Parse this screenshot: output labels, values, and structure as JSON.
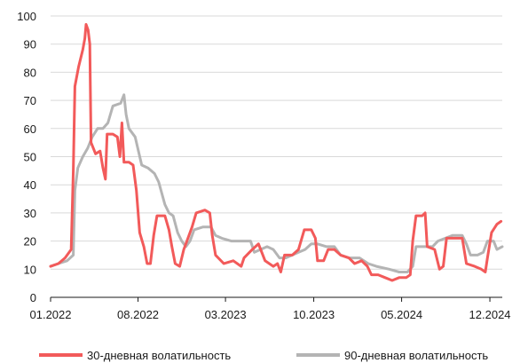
{
  "chart_data": {
    "type": "line",
    "title": "",
    "xlabel": "",
    "ylabel": "",
    "ylim": [
      0,
      100
    ],
    "yticks": [
      0,
      10,
      20,
      30,
      40,
      50,
      60,
      70,
      80,
      90,
      100
    ],
    "xlim": [
      "2022-01-01",
      "2024-12-31"
    ],
    "xticks": [
      {
        "date": "2022-01-01",
        "label": "01.2022"
      },
      {
        "date": "2022-08-01",
        "label": "08.2022"
      },
      {
        "date": "2023-03-01",
        "label": "03.2023"
      },
      {
        "date": "2023-10-01",
        "label": "10.2023"
      },
      {
        "date": "2024-05-01",
        "label": "05.2024"
      },
      {
        "date": "2024-12-01",
        "label": "12.2024"
      }
    ],
    "grid": "horizontal",
    "legend_position": "bottom",
    "series": [
      {
        "name": "30-дневная волатильность",
        "color": "#f25a5a",
        "points": [
          [
            "2022-01-01",
            11
          ],
          [
            "2022-01-20",
            12
          ],
          [
            "2022-02-05",
            14
          ],
          [
            "2022-02-20",
            17
          ],
          [
            "2022-02-25",
            45
          ],
          [
            "2022-03-01",
            75
          ],
          [
            "2022-03-10",
            82
          ],
          [
            "2022-03-20",
            88
          ],
          [
            "2022-03-25",
            92
          ],
          [
            "2022-03-28",
            97
          ],
          [
            "2022-04-02",
            95
          ],
          [
            "2022-04-06",
            90
          ],
          [
            "2022-04-09",
            55
          ],
          [
            "2022-04-20",
            51
          ],
          [
            "2022-05-01",
            52
          ],
          [
            "2022-05-08",
            46
          ],
          [
            "2022-05-14",
            42
          ],
          [
            "2022-05-18",
            58
          ],
          [
            "2022-06-01",
            58
          ],
          [
            "2022-06-12",
            57
          ],
          [
            "2022-06-18",
            50
          ],
          [
            "2022-06-23",
            62
          ],
          [
            "2022-06-28",
            48
          ],
          [
            "2022-07-10",
            48
          ],
          [
            "2022-07-20",
            47
          ],
          [
            "2022-07-28",
            38
          ],
          [
            "2022-08-05",
            23
          ],
          [
            "2022-08-15",
            18
          ],
          [
            "2022-08-23",
            12
          ],
          [
            "2022-08-31",
            12
          ],
          [
            "2022-09-08",
            22
          ],
          [
            "2022-09-16",
            29
          ],
          [
            "2022-10-05",
            29
          ],
          [
            "2022-10-15",
            24
          ],
          [
            "2022-10-22",
            18
          ],
          [
            "2022-10-30",
            12
          ],
          [
            "2022-11-10",
            11
          ],
          [
            "2022-11-20",
            17
          ],
          [
            "2022-11-30",
            21
          ],
          [
            "2022-12-10",
            25
          ],
          [
            "2022-12-20",
            30
          ],
          [
            "2023-01-10",
            31
          ],
          [
            "2023-01-22",
            30
          ],
          [
            "2023-01-28",
            22
          ],
          [
            "2023-02-05",
            15
          ],
          [
            "2023-02-25",
            12
          ],
          [
            "2023-03-20",
            13
          ],
          [
            "2023-04-08",
            11
          ],
          [
            "2023-04-15",
            14
          ],
          [
            "2023-05-05",
            17
          ],
          [
            "2023-05-20",
            19
          ],
          [
            "2023-06-05",
            13
          ],
          [
            "2023-06-25",
            11
          ],
          [
            "2023-07-05",
            12
          ],
          [
            "2023-07-13",
            9
          ],
          [
            "2023-07-22",
            15
          ],
          [
            "2023-08-10",
            15
          ],
          [
            "2023-08-25",
            17
          ],
          [
            "2023-09-08",
            24
          ],
          [
            "2023-09-25",
            24
          ],
          [
            "2023-10-05",
            21
          ],
          [
            "2023-10-10",
            13
          ],
          [
            "2023-10-25",
            13
          ],
          [
            "2023-11-05",
            17
          ],
          [
            "2023-11-20",
            17
          ],
          [
            "2023-12-05",
            15
          ],
          [
            "2023-12-25",
            14
          ],
          [
            "2024-01-08",
            12
          ],
          [
            "2024-01-25",
            13
          ],
          [
            "2024-02-08",
            11
          ],
          [
            "2024-02-18",
            8
          ],
          [
            "2024-03-05",
            8
          ],
          [
            "2024-03-22",
            7
          ],
          [
            "2024-04-08",
            6
          ],
          [
            "2024-04-25",
            7
          ],
          [
            "2024-05-12",
            7
          ],
          [
            "2024-05-22",
            8
          ],
          [
            "2024-05-28",
            20
          ],
          [
            "2024-06-05",
            29
          ],
          [
            "2024-06-20",
            29
          ],
          [
            "2024-06-27",
            30
          ],
          [
            "2024-07-02",
            18
          ],
          [
            "2024-07-20",
            17
          ],
          [
            "2024-08-01",
            10
          ],
          [
            "2024-08-10",
            11
          ],
          [
            "2024-08-18",
            21
          ],
          [
            "2024-09-05",
            21
          ],
          [
            "2024-09-25",
            21
          ],
          [
            "2024-10-05",
            12
          ],
          [
            "2024-10-25",
            11
          ],
          [
            "2024-11-10",
            10
          ],
          [
            "2024-11-20",
            9
          ],
          [
            "2024-11-25",
            14
          ],
          [
            "2024-12-05",
            23
          ],
          [
            "2024-12-18",
            26
          ],
          [
            "2024-12-28",
            27
          ]
        ]
      },
      {
        "name": "90-дневная волатильность",
        "color": "#b4b4b4",
        "points": [
          [
            "2022-01-01",
            11
          ],
          [
            "2022-01-20",
            12
          ],
          [
            "2022-02-10",
            13
          ],
          [
            "2022-02-25",
            15
          ],
          [
            "2022-03-01",
            38
          ],
          [
            "2022-03-08",
            46
          ],
          [
            "2022-03-20",
            50
          ],
          [
            "2022-04-01",
            53
          ],
          [
            "2022-04-12",
            57
          ],
          [
            "2022-04-25",
            60
          ],
          [
            "2022-05-08",
            60
          ],
          [
            "2022-05-20",
            62
          ],
          [
            "2022-06-01",
            68
          ],
          [
            "2022-06-20",
            69
          ],
          [
            "2022-06-28",
            72
          ],
          [
            "2022-07-03",
            65
          ],
          [
            "2022-07-10",
            60
          ],
          [
            "2022-07-25",
            57
          ],
          [
            "2022-08-10",
            47
          ],
          [
            "2022-08-25",
            46
          ],
          [
            "2022-09-10",
            44
          ],
          [
            "2022-09-20",
            41
          ],
          [
            "2022-10-05",
            33
          ],
          [
            "2022-10-15",
            30
          ],
          [
            "2022-10-25",
            29
          ],
          [
            "2022-11-05",
            23
          ],
          [
            "2022-11-15",
            20
          ],
          [
            "2022-11-25",
            18
          ],
          [
            "2022-12-05",
            20
          ],
          [
            "2022-12-15",
            24
          ],
          [
            "2023-01-05",
            25
          ],
          [
            "2023-01-25",
            25
          ],
          [
            "2023-02-05",
            22
          ],
          [
            "2023-02-20",
            21
          ],
          [
            "2023-03-15",
            20
          ],
          [
            "2023-04-10",
            20
          ],
          [
            "2023-05-01",
            20
          ],
          [
            "2023-05-10",
            16
          ],
          [
            "2023-05-25",
            17
          ],
          [
            "2023-06-10",
            18
          ],
          [
            "2023-06-25",
            17
          ],
          [
            "2023-07-10",
            14
          ],
          [
            "2023-07-25",
            14
          ],
          [
            "2023-08-10",
            15
          ],
          [
            "2023-08-25",
            16
          ],
          [
            "2023-09-10",
            17
          ],
          [
            "2023-09-25",
            19
          ],
          [
            "2023-10-10",
            19
          ],
          [
            "2023-11-01",
            18
          ],
          [
            "2023-11-20",
            18
          ],
          [
            "2023-12-05",
            15
          ],
          [
            "2023-12-25",
            14
          ],
          [
            "2024-01-20",
            14
          ],
          [
            "2024-02-10",
            12
          ],
          [
            "2024-03-01",
            11
          ],
          [
            "2024-04-01",
            10
          ],
          [
            "2024-04-25",
            9
          ],
          [
            "2024-05-15",
            9
          ],
          [
            "2024-05-28",
            11
          ],
          [
            "2024-06-05",
            18
          ],
          [
            "2024-06-25",
            18
          ],
          [
            "2024-07-15",
            18
          ],
          [
            "2024-07-28",
            20
          ],
          [
            "2024-08-15",
            21
          ],
          [
            "2024-09-01",
            22
          ],
          [
            "2024-09-25",
            22
          ],
          [
            "2024-10-05",
            19
          ],
          [
            "2024-10-15",
            15
          ],
          [
            "2024-11-01",
            15
          ],
          [
            "2024-11-15",
            16
          ],
          [
            "2024-11-25",
            20
          ],
          [
            "2024-12-10",
            20
          ],
          [
            "2024-12-18",
            17
          ],
          [
            "2024-12-31",
            18
          ]
        ]
      }
    ]
  }
}
